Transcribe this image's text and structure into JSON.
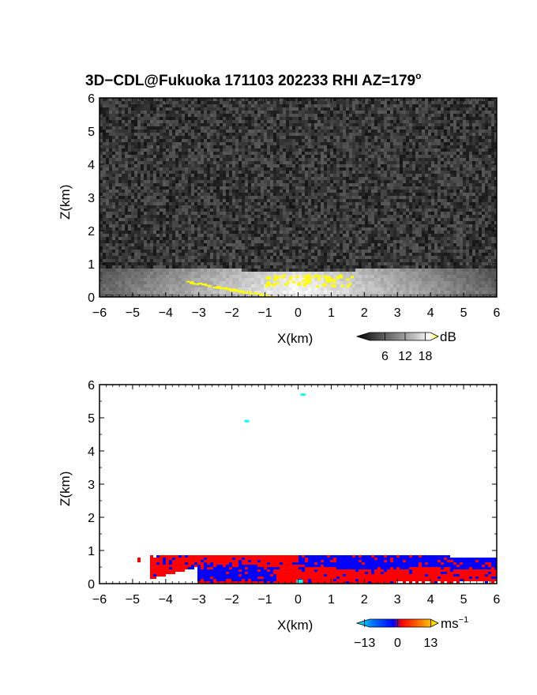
{
  "figure": {
    "title_prefix": "3D−CDL@Fukuoka 171103 202233 RHI AZ=179",
    "title_degree": "o"
  },
  "chart_data": [
    {
      "type": "heatmap",
      "quantity": "SNR",
      "xlabel": "X(km)",
      "ylabel": "Z(km)",
      "xlim": [
        -6,
        6
      ],
      "ylim": [
        0,
        6
      ],
      "xticks": [
        "−6",
        "−5",
        "−4",
        "−3",
        "−2",
        "−1",
        "0",
        "1",
        "2",
        "3",
        "4",
        "5",
        "6"
      ],
      "yticks": [
        "0",
        "1",
        "2",
        "3",
        "4",
        "5",
        "6"
      ],
      "colorbar": {
        "unit": "dB",
        "ticks": [
          6,
          12,
          18
        ],
        "tick_labels": [
          "6",
          "12",
          "18"
        ],
        "range": [
          0,
          20
        ],
        "colors": [
          "#000000",
          "#3a3a3a",
          "#7a7a7a",
          "#bdbdbd",
          "#ffffff",
          "#ffff00"
        ]
      },
      "background_noise": "noise speckle, dark grey, all heights up to 6 km",
      "bright_layer": {
        "x": [
          -6,
          6
        ],
        "top_km": 0.9,
        "peak_x": 0,
        "peak_top_km": 0.75
      },
      "saturated_patches": [
        {
          "x": [
            -1.0,
            1.6
          ],
          "z": [
            0.35,
            0.7
          ]
        },
        {
          "x": [
            -3.4,
            -0.8
          ],
          "z": [
            0.0,
            0.5
          ],
          "along": "ground"
        }
      ]
    },
    {
      "type": "heatmap",
      "quantity": "Doppler velocity",
      "xlabel": "X(km)",
      "ylabel": "Z(km)",
      "xlim": [
        -6,
        6
      ],
      "ylim": [
        0,
        6
      ],
      "xticks": [
        "−6",
        "−5",
        "−4",
        "−3",
        "−2",
        "−1",
        "0",
        "1",
        "2",
        "3",
        "4",
        "5",
        "6"
      ],
      "yticks": [
        "0",
        "1",
        "2",
        "3",
        "4",
        "5",
        "6"
      ],
      "colorbar": {
        "unit": "ms",
        "unit_exponent": "−1",
        "ticks": [
          -13,
          0,
          13
        ],
        "tick_labels": [
          "−13",
          "0",
          "13"
        ],
        "range": [
          -16,
          16
        ],
        "colors": [
          "#00ffff",
          "#0070ff",
          "#0000ff",
          "#ff0000",
          "#ff8000",
          "#ffff00"
        ]
      },
      "echo_layer": {
        "x": [
          -4.8,
          6.0
        ],
        "top_km": 0.85
      },
      "regions": [
        {
          "x": [
            -4.4,
            0
          ],
          "velocity": "positive",
          "color": "#ff0000"
        },
        {
          "x": [
            -3.2,
            -0.8
          ],
          "z": [
            0.1,
            0.6
          ],
          "velocity": "negative",
          "color": "#0000ff"
        },
        {
          "x": [
            0,
            6
          ],
          "z": [
            0.45,
            0.85
          ],
          "velocity": "negative",
          "color": "#0000ff"
        },
        {
          "x": [
            0,
            6
          ],
          "z": [
            0,
            0.45
          ],
          "velocity": "positive",
          "color": "#ff0000"
        }
      ],
      "isolated_points": [
        {
          "x": 0.15,
          "z": 5.7,
          "color": "#00ffff"
        },
        {
          "x": -1.55,
          "z": 4.9,
          "color": "#00ffff"
        }
      ]
    }
  ]
}
